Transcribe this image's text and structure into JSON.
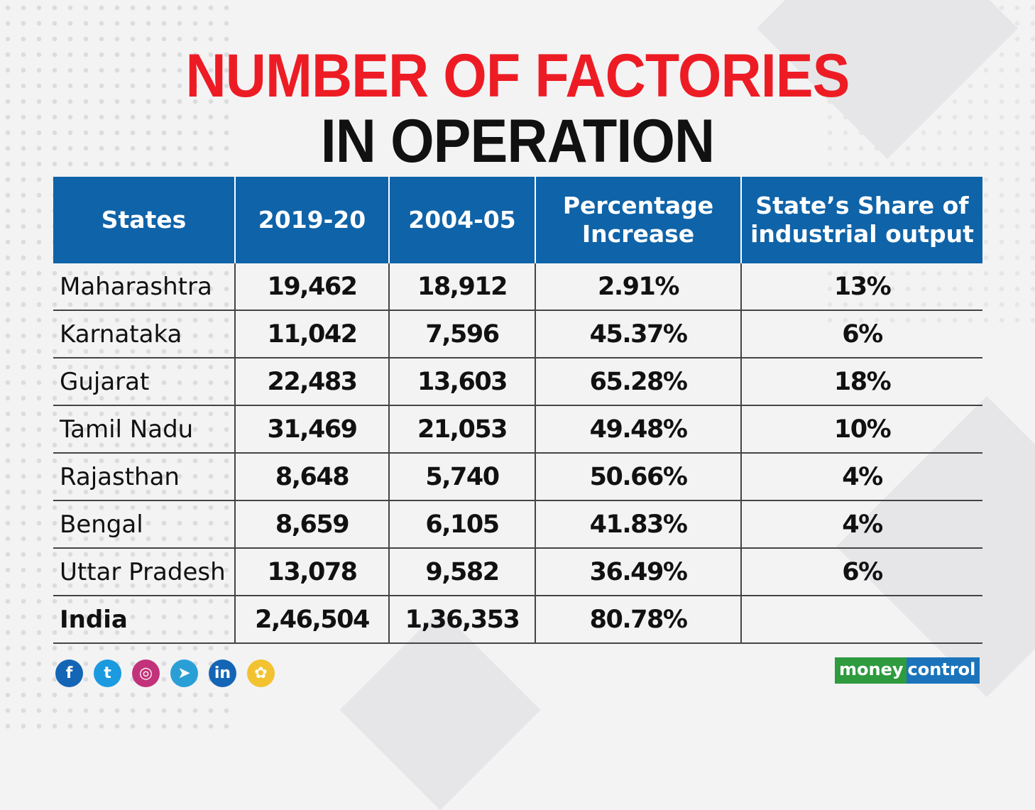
{
  "title": {
    "line1": "NUMBER OF FACTORIES",
    "line2": "IN OPERATION"
  },
  "chart_data": {
    "type": "table",
    "columns": [
      "States",
      "2019-20",
      "2004-05",
      "Percentage Increase",
      "State’s Share of industrial output"
    ],
    "rows": [
      [
        "Maharashtra",
        "19,462",
        "18,912",
        "2.91%",
        "13%"
      ],
      [
        "Karnataka",
        "11,042",
        "7,596",
        "45.37%",
        "6%"
      ],
      [
        "Gujarat",
        "22,483",
        "13,603",
        "65.28%",
        "18%"
      ],
      [
        "Tamil Nadu",
        "31,469",
        "21,053",
        "49.48%",
        "10%"
      ],
      [
        "Rajasthan",
        "8,648",
        "5,740",
        "50.66%",
        "4%"
      ],
      [
        "Bengal",
        "8,659",
        "6,105",
        "41.83%",
        "4%"
      ],
      [
        "Uttar Pradesh",
        "13,078",
        "9,582",
        "36.49%",
        "6%"
      ],
      [
        "India",
        "2,46,504",
        "1,36,353",
        "80.78%",
        ""
      ]
    ]
  },
  "header": {
    "col1": "States",
    "col2": "2019-20",
    "col3": "2004-05",
    "col4_line1": "Percentage",
    "col4_line2": "Increase",
    "col5_line1": "State’s Share of",
    "col5_line2": "industrial output"
  },
  "social": [
    {
      "icon": "facebook-icon",
      "glyph": "f",
      "color": "#1565b6"
    },
    {
      "icon": "twitter-icon",
      "glyph": "t",
      "color": "#1b9ae0"
    },
    {
      "icon": "instagram-icon",
      "glyph": "◎",
      "color": "#c2327a"
    },
    {
      "icon": "telegram-icon",
      "glyph": "➤",
      "color": "#2a9fd6"
    },
    {
      "icon": "linkedin-icon",
      "glyph": "in",
      "color": "#1565b6"
    },
    {
      "icon": "koo-icon",
      "glyph": "✿",
      "color": "#f2c230"
    }
  ],
  "logo": {
    "money": "money",
    "control": "control"
  },
  "colors": {
    "title_red": "#ed1c24",
    "header_blue": "#0f63a8"
  }
}
